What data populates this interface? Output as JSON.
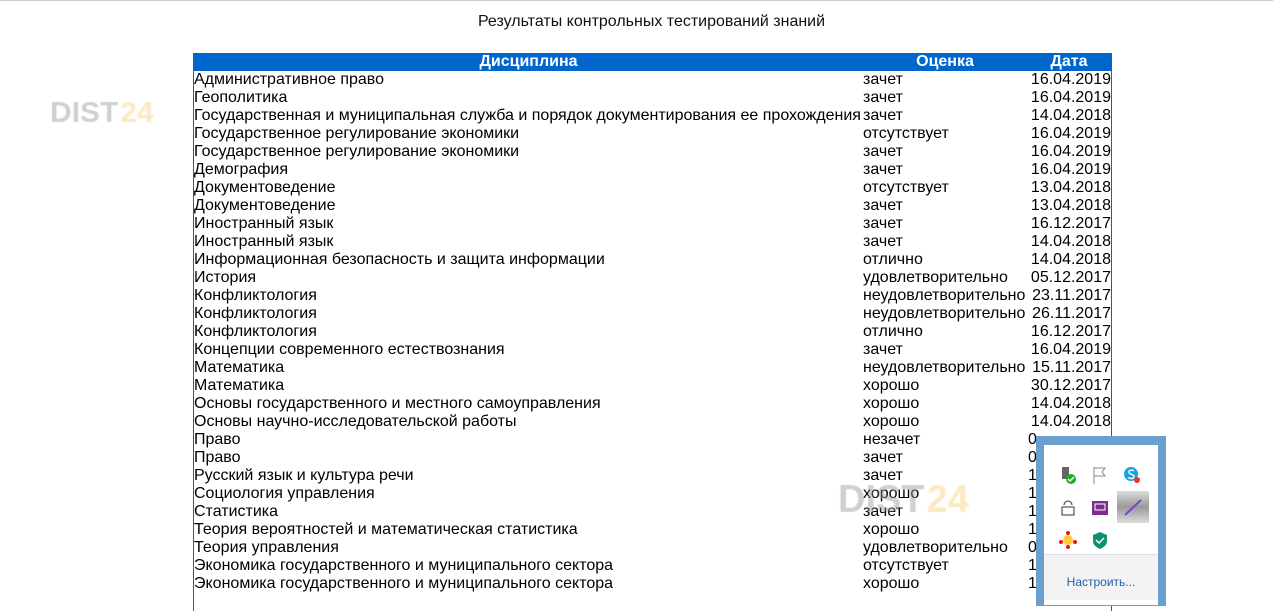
{
  "page": {
    "title": "Результаты контрольных тестирований знаний"
  },
  "table": {
    "headers": [
      "Дисциплина",
      "Оценка",
      "Дата"
    ],
    "rows": [
      [
        "Административное право",
        "зачет",
        "16.04.2019"
      ],
      [
        "Геополитика",
        "зачет",
        "16.04.2019"
      ],
      [
        "Государственная и муниципальная служба и порядок документирования ее прохождения",
        "зачет",
        "14.04.2018"
      ],
      [
        "Государственное регулирование экономики",
        "отсутствует",
        "16.04.2019"
      ],
      [
        "Государственное регулирование экономики",
        "зачет",
        "16.04.2019"
      ],
      [
        "Демография",
        "зачет",
        "16.04.2019"
      ],
      [
        "Документоведение",
        "отсутствует",
        "13.04.2018"
      ],
      [
        "Документоведение",
        "зачет",
        "13.04.2018"
      ],
      [
        "Иностранный язык",
        "зачет",
        "16.12.2017"
      ],
      [
        "Иностранный язык",
        "зачет",
        "14.04.2018"
      ],
      [
        "Информационная безопасность и защита информации",
        "отлично",
        "14.04.2018"
      ],
      [
        "История",
        "удовлетворительно",
        "05.12.2017"
      ],
      [
        "Конфликтология",
        "неудовлетворительно",
        "23.11.2017"
      ],
      [
        "Конфликтология",
        "неудовлетворительно",
        "26.11.2017"
      ],
      [
        "Конфликтология",
        "отлично",
        "16.12.2017"
      ],
      [
        "Концепции современного естествознания",
        "зачет",
        "16.04.2019"
      ],
      [
        "Математика",
        "неудовлетворительно",
        "15.11.2017"
      ],
      [
        "Математика",
        "хорошо",
        "30.12.2017"
      ],
      [
        "Основы государственного и местного самоуправления",
        "хорошо",
        "14.04.2018"
      ],
      [
        "Основы научно-исследовательской работы",
        "хорошо",
        "14.04.2018"
      ],
      [
        "Право",
        "незачет",
        "0"
      ],
      [
        "Право",
        "зачет",
        "0"
      ],
      [
        "Русский язык и культура речи",
        "зачет",
        "1"
      ],
      [
        "Социология управления",
        "хорошо",
        "1"
      ],
      [
        "Статистика",
        "зачет",
        "1"
      ],
      [
        "Теория вероятностей и математическая статистика",
        "хорошо",
        "1"
      ],
      [
        "Теория управления",
        "удовлетворительно",
        "0"
      ],
      [
        "Экономика государственного и муниципального сектора",
        "отсутствует",
        "1"
      ],
      [
        "Экономика государственного и муниципального сектора",
        "хорошо",
        "1"
      ],
      [
        "",
        "",
        ""
      ]
    ]
  },
  "watermark": {
    "a": "DIST",
    "b": "24"
  },
  "tray": {
    "customize": "Настроить...",
    "icons": [
      "usb-safe-remove-icon",
      "action-center-flag-icon",
      "skype-icon",
      "network-printer-icon",
      "presentation-icon",
      "pen-icon",
      "sun-app-icon",
      "antivirus-shield-icon"
    ]
  },
  "colors": {
    "header": "#0066cc",
    "tray_border": "#6a9fd0",
    "link": "#1f5fad"
  }
}
